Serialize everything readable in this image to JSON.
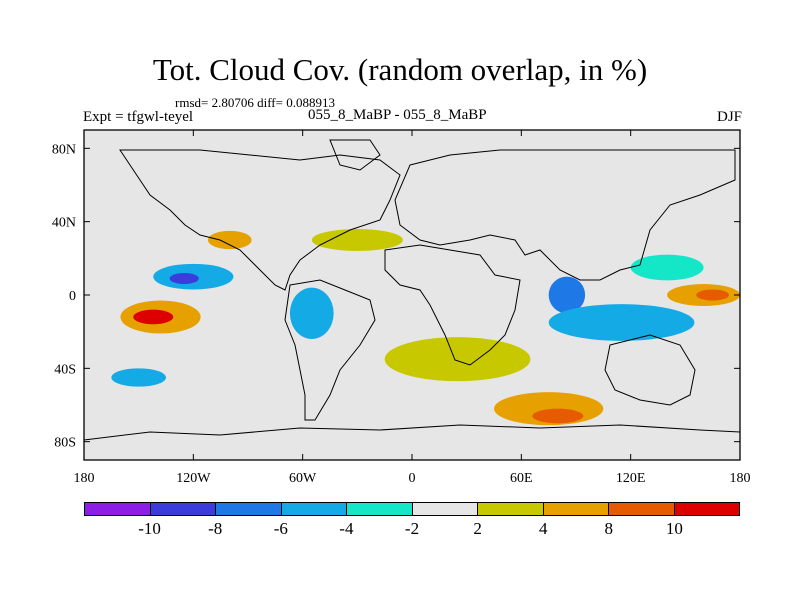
{
  "title": "Tot. Cloud Cov. (random overlap, in %)",
  "stats": "rmsd= 2.80706  diff= 0.088913",
  "experiment": "Expt = tfgwl-teyel",
  "cases": "055_8_MaBP - 055_8_MaBP",
  "season": "DJF",
  "map": {
    "projection": "cylindrical equidistant",
    "lon_range": [
      -180,
      180
    ],
    "lat_range": [
      -90,
      90
    ],
    "x_ticks": [
      {
        "value": -180,
        "label": "180"
      },
      {
        "value": -120,
        "label": "120W"
      },
      {
        "value": -60,
        "label": "60W"
      },
      {
        "value": 0,
        "label": "0"
      },
      {
        "value": 60,
        "label": "60E"
      },
      {
        "value": 120,
        "label": "120E"
      },
      {
        "value": 180,
        "label": "180"
      }
    ],
    "y_ticks": [
      {
        "value": 80,
        "label": "80N"
      },
      {
        "value": 40,
        "label": "40N"
      },
      {
        "value": 0,
        "label": "0"
      },
      {
        "value": -40,
        "label": "40S"
      },
      {
        "value": -80,
        "label": "80S"
      }
    ],
    "background_color": "#e6e6e6",
    "anomalies": [
      {
        "lon": -138,
        "lat": -12,
        "rx": 22,
        "ry": 9,
        "value": 6
      },
      {
        "lon": -142,
        "lat": -12,
        "rx": 11,
        "ry": 4,
        "value": 11
      },
      {
        "lon": 160,
        "lat": 0,
        "rx": 20,
        "ry": 6,
        "value": 6
      },
      {
        "lon": 165,
        "lat": 0,
        "rx": 9,
        "ry": 3,
        "value": 9
      },
      {
        "lon": 75,
        "lat": -62,
        "rx": 30,
        "ry": 9,
        "value": 5
      },
      {
        "lon": 80,
        "lat": -66,
        "rx": 14,
        "ry": 4,
        "value": 9
      },
      {
        "lon": -100,
        "lat": 30,
        "rx": 12,
        "ry": 5,
        "value": 5
      },
      {
        "lon": -120,
        "lat": 10,
        "rx": 22,
        "ry": 7,
        "value": -5
      },
      {
        "lon": -125,
        "lat": 9,
        "rx": 8,
        "ry": 3,
        "value": -9
      },
      {
        "lon": -55,
        "lat": -10,
        "rx": 12,
        "ry": 14,
        "value": -5
      },
      {
        "lon": 85,
        "lat": 0,
        "rx": 10,
        "ry": 10,
        "value": -7
      },
      {
        "lon": 115,
        "lat": -15,
        "rx": 40,
        "ry": 10,
        "value": -5
      },
      {
        "lon": 140,
        "lat": 15,
        "rx": 20,
        "ry": 7,
        "value": -3
      },
      {
        "lon": -150,
        "lat": -45,
        "rx": 15,
        "ry": 5,
        "value": -5
      },
      {
        "lon": -30,
        "lat": 30,
        "rx": 25,
        "ry": 6,
        "value": 3
      },
      {
        "lon": 25,
        "lat": -35,
        "rx": 40,
        "ry": 12,
        "value": 3
      }
    ]
  },
  "colorbar": {
    "colors": [
      "#8c1ee6",
      "#3c3cdc",
      "#1e78e6",
      "#14aae6",
      "#14e6c8",
      "#e6e6e6",
      "#c8c800",
      "#e6a000",
      "#e65a00",
      "#dc0000"
    ],
    "labels": [
      {
        "index": 1,
        "text": "-10"
      },
      {
        "index": 2,
        "text": "-8"
      },
      {
        "index": 3,
        "text": "-6"
      },
      {
        "index": 4,
        "text": "-4"
      },
      {
        "index": 5,
        "text": "-2"
      },
      {
        "index": 6,
        "text": "2"
      },
      {
        "index": 7,
        "text": "4"
      },
      {
        "index": 8,
        "text": "8"
      },
      {
        "index": 9,
        "text": "10"
      }
    ]
  }
}
